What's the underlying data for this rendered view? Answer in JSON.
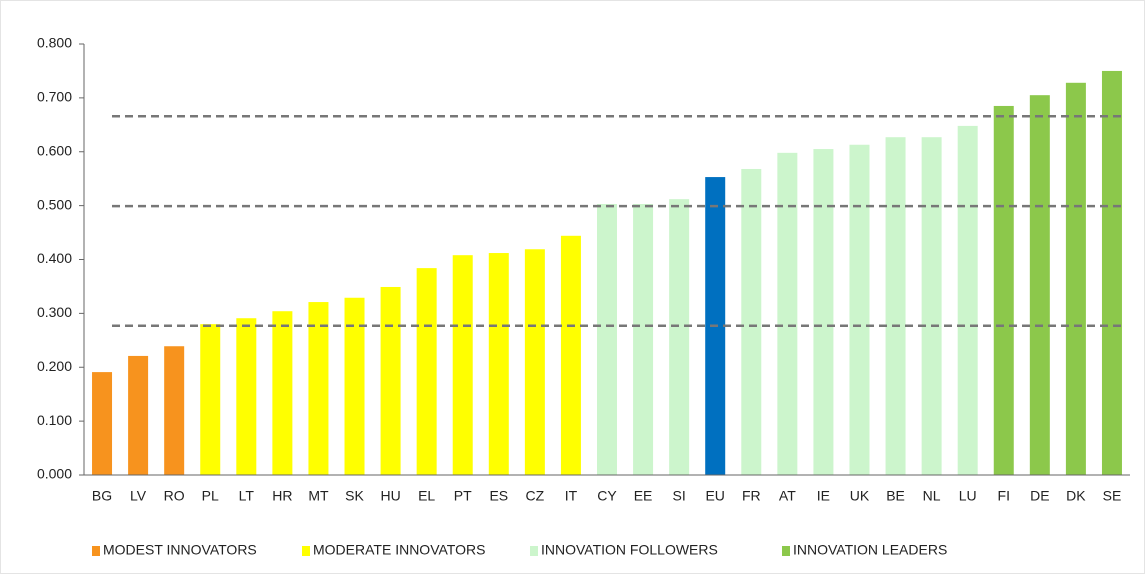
{
  "chart_data": {
    "type": "bar",
    "categories": [
      "BG",
      "LV",
      "RO",
      "PL",
      "LT",
      "HR",
      "MT",
      "SK",
      "HU",
      "EL",
      "PT",
      "ES",
      "CZ",
      "IT",
      "CY",
      "EE",
      "SI",
      "EU",
      "FR",
      "AT",
      "IE",
      "UK",
      "BE",
      "NL",
      "LU",
      "FI",
      "DE",
      "DK",
      "SE"
    ],
    "values": [
      0.191,
      0.221,
      0.239,
      0.28,
      0.291,
      0.304,
      0.321,
      0.329,
      0.349,
      0.384,
      0.408,
      0.412,
      0.419,
      0.444,
      0.503,
      0.503,
      0.512,
      0.553,
      0.568,
      0.598,
      0.605,
      0.613,
      0.627,
      0.627,
      0.648,
      0.685,
      0.705,
      0.728,
      0.75
    ],
    "colors": [
      "#f7931e",
      "#f7931e",
      "#f7931e",
      "#ffff00",
      "#ffff00",
      "#ffff00",
      "#ffff00",
      "#ffff00",
      "#ffff00",
      "#ffff00",
      "#ffff00",
      "#ffff00",
      "#ffff00",
      "#ffff00",
      "#ccf5cc",
      "#ccf5cc",
      "#ccf5cc",
      "#0070c0",
      "#ccf5cc",
      "#ccf5cc",
      "#ccf5cc",
      "#ccf5cc",
      "#ccf5cc",
      "#ccf5cc",
      "#ccf5cc",
      "#8cc84b",
      "#8cc84b",
      "#8cc84b",
      "#8cc84b"
    ],
    "legend": [
      {
        "name": "MODEST INNOVATORS",
        "color": "#f7931e"
      },
      {
        "name": "MODERATE INNOVATORS",
        "color": "#ffff00"
      },
      {
        "name": "INNOVATION FOLLOWERS",
        "color": "#ccf5cc"
      },
      {
        "name": "INNOVATION LEADERS",
        "color": "#8cc84b"
      }
    ],
    "reference_lines": [
      0.277,
      0.499,
      0.666
    ],
    "ylim": [
      0,
      0.8
    ],
    "yticks": [
      {
        "value": 0,
        "label": "0.000"
      },
      {
        "value": 0.1,
        "label": "0.100"
      },
      {
        "value": 0.2,
        "label": "0.200"
      },
      {
        "value": 0.3,
        "label": "0.300"
      },
      {
        "value": 0.4,
        "label": "0.400"
      },
      {
        "value": 0.5,
        "label": "0.500"
      },
      {
        "value": 0.6,
        "label": "0.600"
      },
      {
        "value": 0.7,
        "label": "0.700"
      },
      {
        "value": 0.8,
        "label": "0.800"
      }
    ],
    "grid": false
  }
}
